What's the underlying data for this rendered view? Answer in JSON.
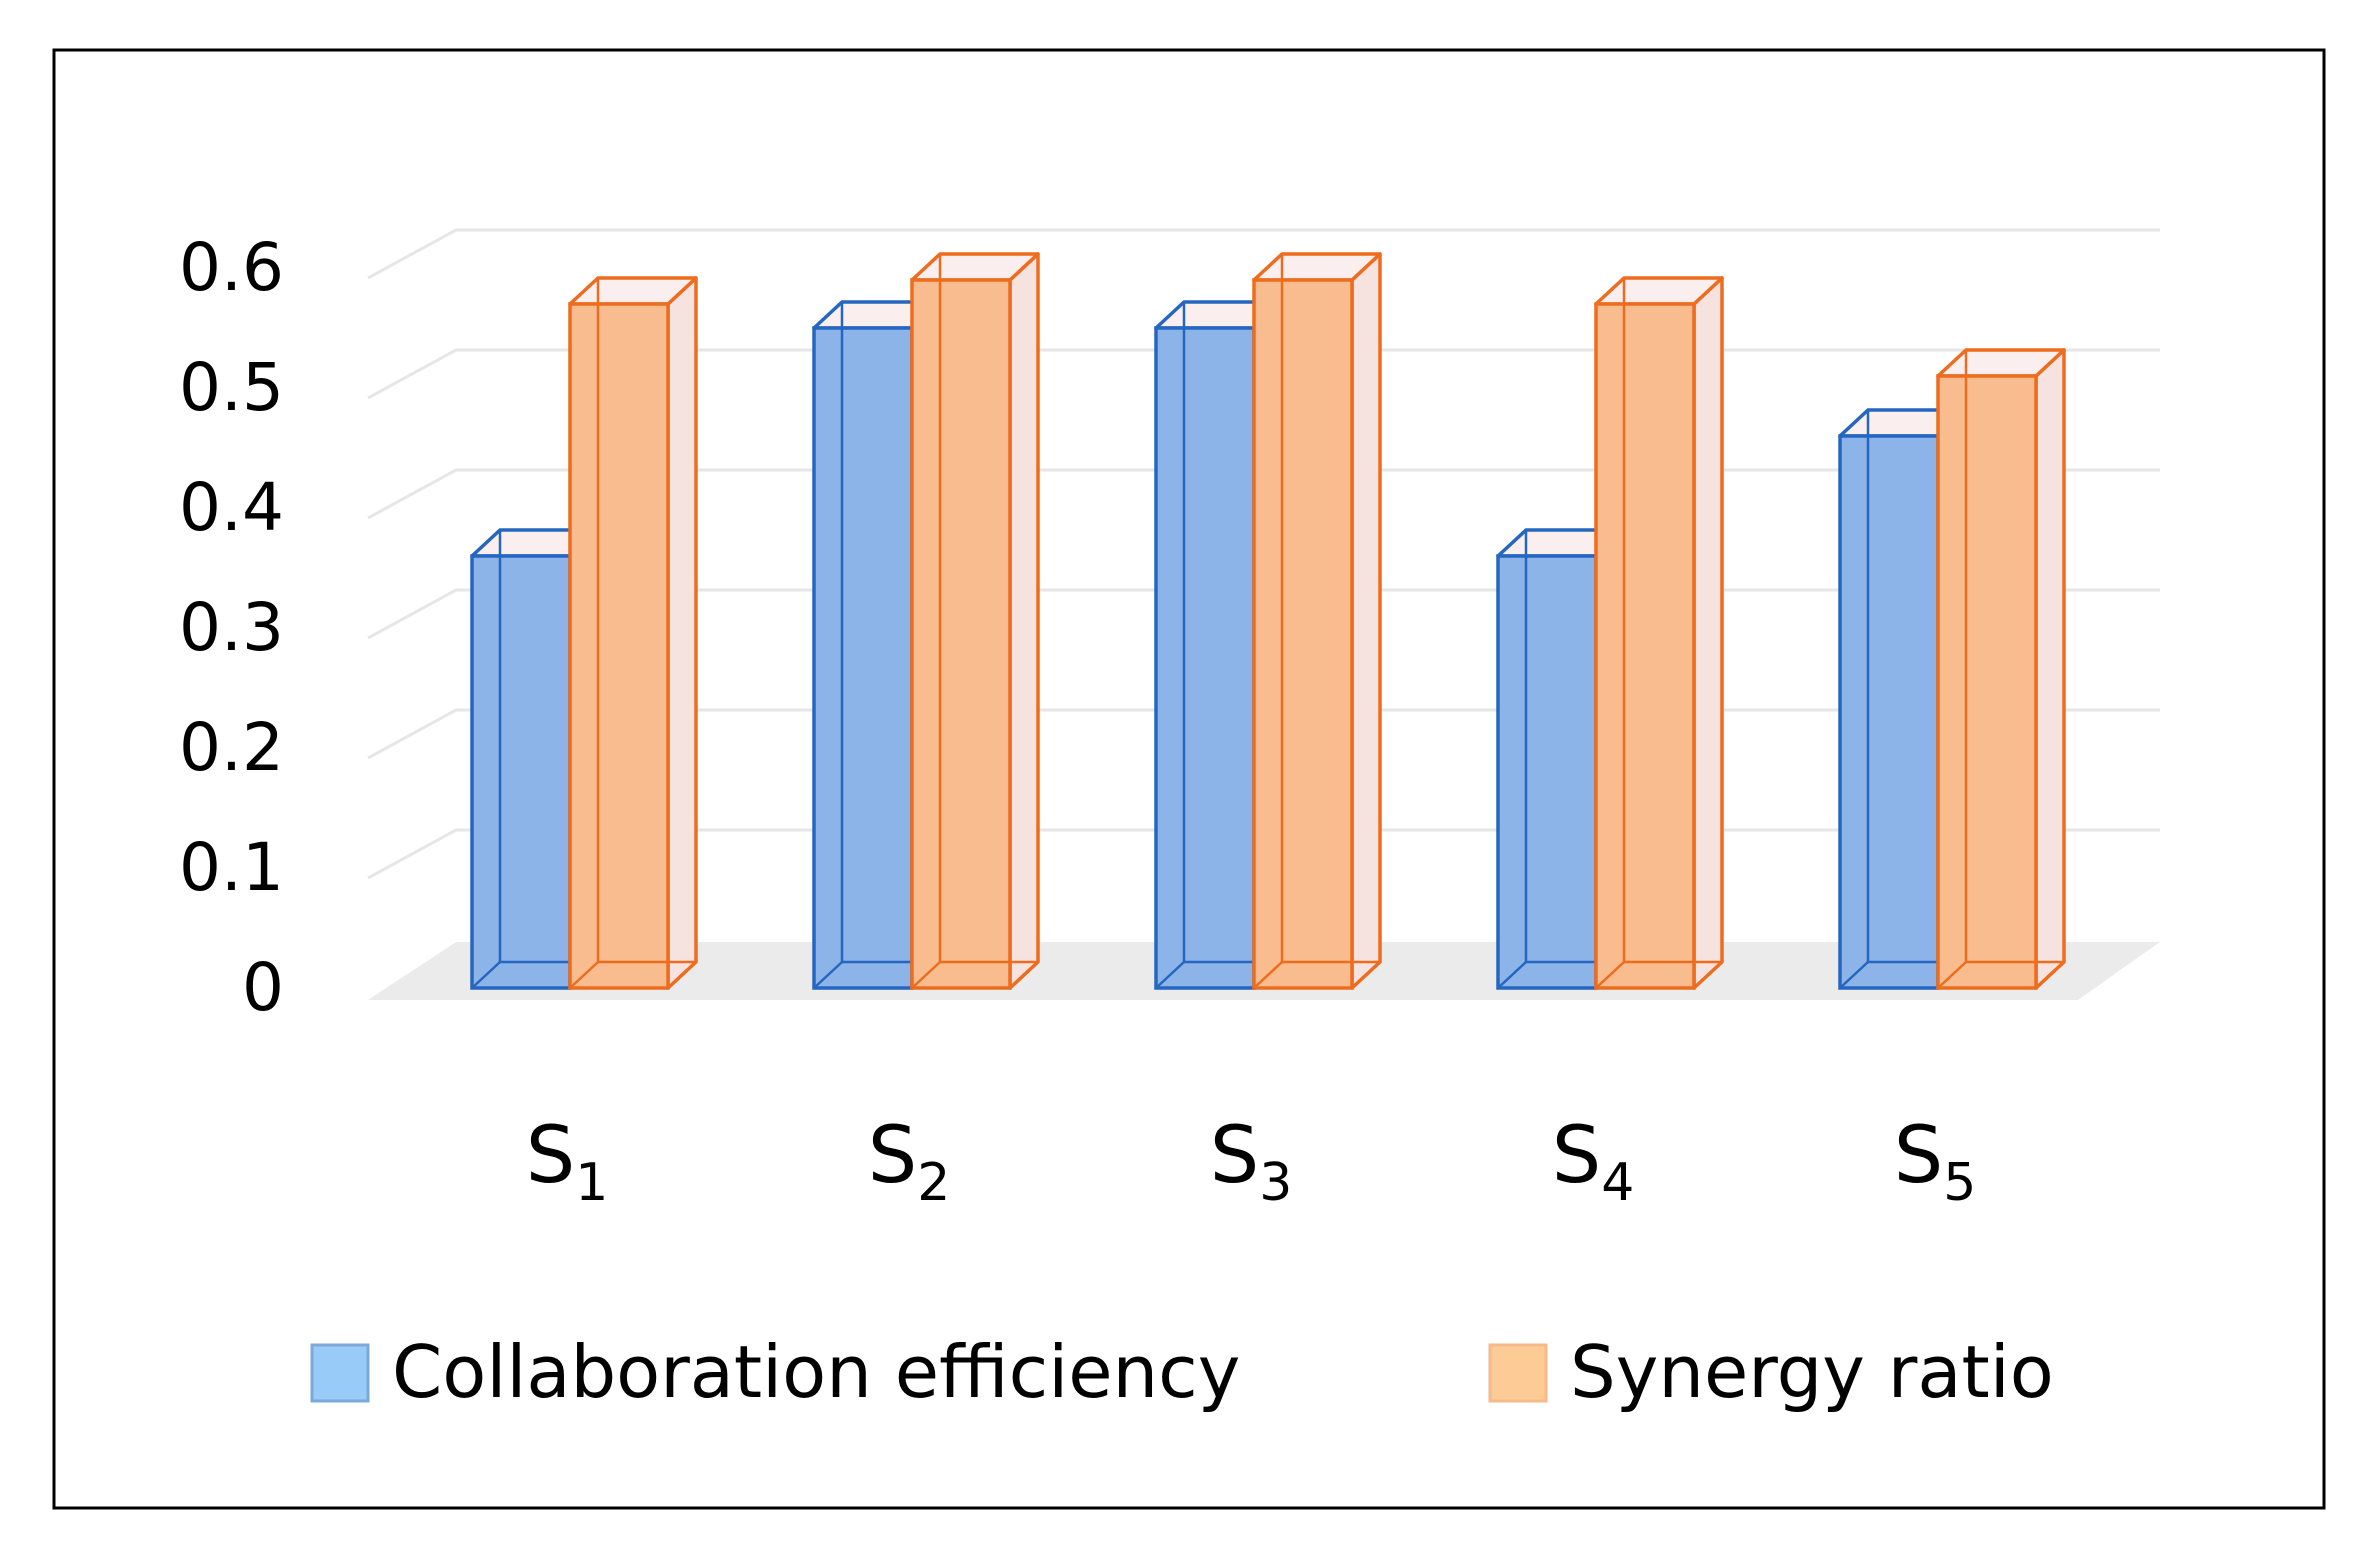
{
  "chart_data": {
    "type": "bar",
    "style": "3d-clustered-column",
    "categories": [
      {
        "base": "S",
        "sub": "1"
      },
      {
        "base": "S",
        "sub": "2"
      },
      {
        "base": "S",
        "sub": "3"
      },
      {
        "base": "S",
        "sub": "4"
      },
      {
        "base": "S",
        "sub": "5"
      }
    ],
    "series": [
      {
        "name": "Collaboration efficiency",
        "values": [
          0.36,
          0.55,
          0.55,
          0.36,
          0.46
        ],
        "fill": "#8db4e8",
        "stroke": "#2566c0",
        "legend_fill": "#99cbf8",
        "legend_stroke": "#7ea8d8"
      },
      {
        "name": "Synergy ratio",
        "values": [
          0.57,
          0.59,
          0.59,
          0.57,
          0.51
        ],
        "fill": "#f9bc8e",
        "stroke": "#ed6c1e",
        "legend_fill": "#fdcb95",
        "legend_stroke": "#f6b98a"
      }
    ],
    "yticks": [
      "0",
      "0.1",
      "0.2",
      "0.3",
      "0.4",
      "0.5",
      "0.6"
    ],
    "ylim": [
      0,
      0.6
    ],
    "title": "",
    "xlabel": "",
    "ylabel": "",
    "grid": true,
    "legend_position": "bottom"
  }
}
